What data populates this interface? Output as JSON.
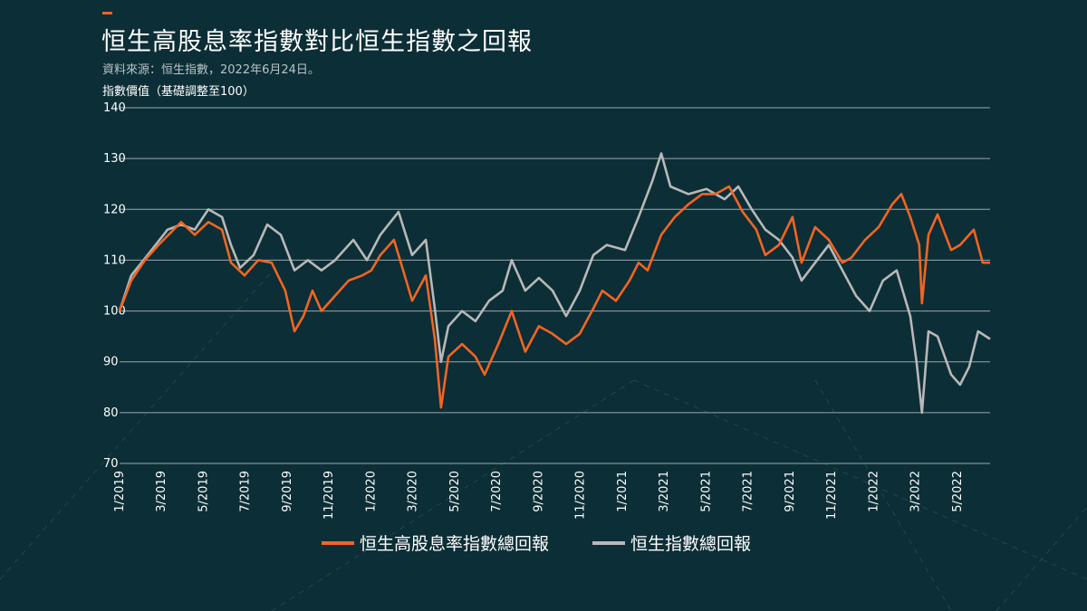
{
  "header": {
    "title": "恒生高股息率指數對比恒生指數之回報",
    "source": "資料來源：恒生指數，2022年6月24日。"
  },
  "chart_data": {
    "type": "line",
    "title": "恒生高股息率指數對比恒生指數之回報",
    "ylabel": "指數價值（基礎調整至100）",
    "xlabel": "",
    "x_unit": "months since 1/2019",
    "ylim": [
      70,
      140
    ],
    "xlim": [
      0,
      41.56
    ],
    "yticks": [
      140,
      130,
      120,
      110,
      100,
      90,
      80,
      70
    ],
    "xticks": [
      {
        "x": 0,
        "label": "1/2019"
      },
      {
        "x": 2,
        "label": "3/2019"
      },
      {
        "x": 4,
        "label": "5/2019"
      },
      {
        "x": 6,
        "label": "7/2019"
      },
      {
        "x": 8,
        "label": "9/2019"
      },
      {
        "x": 10,
        "label": "11/2019"
      },
      {
        "x": 12,
        "label": "1/2020"
      },
      {
        "x": 14,
        "label": "3/2020"
      },
      {
        "x": 16,
        "label": "5/2020"
      },
      {
        "x": 18,
        "label": "7/2020"
      },
      {
        "x": 20,
        "label": "9/2020"
      },
      {
        "x": 22,
        "label": "11/2020"
      },
      {
        "x": 24,
        "label": "1/2021"
      },
      {
        "x": 26,
        "label": "3/2021"
      },
      {
        "x": 28,
        "label": "5/2021"
      },
      {
        "x": 30,
        "label": "7/2021"
      },
      {
        "x": 32,
        "label": "9/2021"
      },
      {
        "x": 34,
        "label": "11/2021"
      },
      {
        "x": 36,
        "label": "1/2022"
      },
      {
        "x": 38,
        "label": "3/2022"
      },
      {
        "x": 40,
        "label": "5/2022"
      }
    ],
    "grid": true,
    "legend_position": "bottom-center",
    "series": [
      {
        "name": "恒生高股息率指數總回報",
        "color": "#f26522",
        "x": [
          0,
          0.56,
          1.21,
          1.86,
          2.94,
          3.59,
          4.24,
          4.89,
          5.32,
          5.97,
          6.62,
          7.26,
          7.91,
          8.35,
          8.78,
          9.21,
          9.64,
          10.29,
          10.94,
          11.59,
          12.02,
          12.45,
          13.1,
          13.54,
          13.97,
          14.62,
          15.05,
          15.35,
          15.7,
          16.35,
          16.99,
          17.43,
          18.08,
          18.72,
          19.37,
          20.02,
          20.67,
          21.32,
          21.97,
          22.62,
          23.05,
          23.7,
          24.35,
          24.78,
          25.21,
          25.86,
          26.51,
          27.16,
          27.81,
          28.45,
          29.1,
          29.75,
          30.4,
          30.83,
          31.48,
          32.13,
          32.56,
          33.21,
          33.86,
          34.51,
          34.94,
          35.59,
          36.24,
          36.89,
          37.32,
          37.75,
          38.18,
          38.31,
          38.62,
          39.05,
          39.7,
          40.13,
          40.78,
          41.21,
          41.56
        ],
        "y": [
          100,
          106,
          110,
          113,
          117.5,
          115,
          117.5,
          116,
          109.5,
          107,
          110,
          109.5,
          104,
          96,
          99,
          104,
          100,
          103,
          106,
          107,
          108,
          111,
          114,
          108,
          102,
          107,
          94.5,
          81,
          91,
          93.5,
          91,
          87.5,
          93.5,
          100,
          92,
          97,
          95.5,
          93.5,
          95.5,
          100.5,
          104,
          102,
          106,
          109.5,
          108,
          115,
          118.5,
          121,
          123,
          123,
          124.5,
          119.5,
          116,
          111,
          113,
          118.5,
          109.5,
          116.5,
          114,
          109.5,
          110.5,
          114,
          116.5,
          121,
          123,
          118.5,
          113,
          101.5,
          115,
          119,
          112,
          113,
          116,
          109.5,
          109.5
        ]
      },
      {
        "name": "恒生指數總回報",
        "color": "#b8b8b8",
        "x": [
          0,
          0.56,
          1.43,
          2.29,
          2.94,
          3.59,
          4.24,
          4.89,
          5.32,
          5.75,
          6.4,
          7.05,
          7.7,
          8.35,
          8.99,
          9.64,
          10.29,
          11.16,
          11.81,
          12.45,
          13.32,
          13.97,
          14.62,
          15.05,
          15.35,
          15.7,
          16.35,
          16.99,
          17.64,
          18.29,
          18.72,
          19.37,
          20.02,
          20.67,
          21.32,
          21.97,
          22.62,
          23.26,
          24.13,
          24.78,
          25.43,
          25.86,
          26.3,
          27.16,
          28.02,
          28.89,
          29.54,
          30.18,
          30.83,
          31.48,
          32.13,
          32.56,
          33.21,
          33.86,
          34.51,
          35.16,
          35.81,
          36.45,
          37.1,
          37.75,
          38.05,
          38.31,
          38.62,
          39.05,
          39.7,
          40.13,
          40.56,
          40.99,
          41.56
        ],
        "y": [
          100,
          107,
          111.5,
          116,
          117,
          116,
          120,
          118.5,
          113,
          108.5,
          111,
          117,
          115,
          108,
          110,
          108,
          110,
          114,
          110,
          115,
          119.5,
          111,
          114,
          100.5,
          90,
          97,
          100,
          98,
          102,
          104,
          110,
          104,
          106.5,
          104,
          99,
          104,
          111,
          113,
          112,
          118.5,
          125.5,
          131,
          124.5,
          123,
          124,
          122,
          124.5,
          120,
          116,
          114,
          110.5,
          106,
          109.5,
          113,
          108,
          103,
          100,
          106,
          108,
          99,
          90,
          80,
          96,
          95,
          87.5,
          85.5,
          89,
          96,
          94.5
        ]
      }
    ]
  }
}
